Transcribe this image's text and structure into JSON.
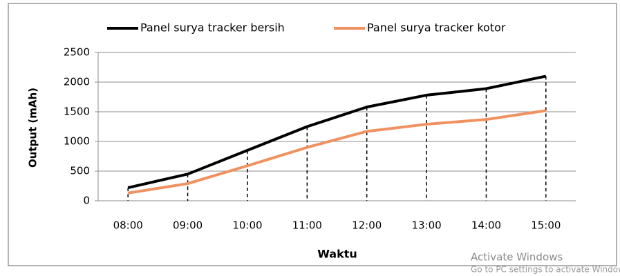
{
  "chart_data": {
    "type": "line",
    "categories": [
      "08:00",
      "09:00",
      "10:00",
      "11:00",
      "12:00",
      "13:00",
      "14:00",
      "15:00"
    ],
    "series": [
      {
        "name": "Panel surya tracker bersih",
        "color": "#000000",
        "values": [
          220,
          450,
          850,
          1250,
          1580,
          1780,
          1890,
          2100
        ]
      },
      {
        "name": "Panel surya tracker kotor",
        "color": "#f0915f",
        "values": [
          130,
          290,
          590,
          900,
          1170,
          1290,
          1370,
          1520
        ]
      }
    ],
    "y_label": "Output (mAh)",
    "x_label": "Waktu",
    "ylim": [
      0,
      2500
    ],
    "yticks": [
      0,
      500,
      1000,
      1500,
      2000,
      2500
    ],
    "grid": true,
    "legend": "top",
    "drop_lines": true
  },
  "watermark": {
    "title": "Activate Windows",
    "subtitle": "Go to PC settings to activate Windows"
  }
}
